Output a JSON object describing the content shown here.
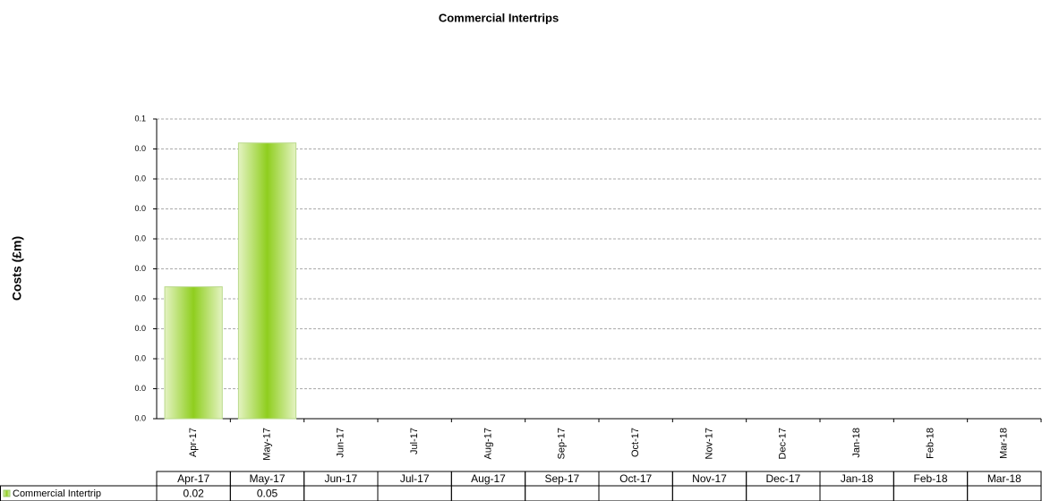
{
  "chart_data": {
    "type": "bar",
    "title": "Commercial Intertrips",
    "y_label": "Costs (£m)",
    "categories": [
      "Apr-17",
      "May-17",
      "Jun-17",
      "Jul-17",
      "Aug-17",
      "Sep-17",
      "Oct-17",
      "Nov-17",
      "Dec-17",
      "Jan-18",
      "Feb-18",
      "Mar-18"
    ],
    "series": [
      {
        "name": "Commercial Intertrip",
        "color": "#8fce1e",
        "values": [
          0.022,
          0.046,
          null,
          null,
          null,
          null,
          null,
          null,
          null,
          null,
          null,
          null
        ],
        "value_labels": [
          "0.02",
          "0.05",
          null,
          null,
          null,
          null,
          null,
          null,
          null,
          null,
          null,
          null
        ]
      }
    ],
    "ylim": [
      0,
      0.05
    ],
    "yticks": [
      {
        "value": 0,
        "label": "0.0"
      },
      {
        "value": 0.005,
        "label": "0.0"
      },
      {
        "value": 0.01,
        "label": "0.0"
      },
      {
        "value": 0.015,
        "label": "0.0"
      },
      {
        "value": 0.02,
        "label": "0.0"
      },
      {
        "value": 0.025,
        "label": "0.0"
      },
      {
        "value": 0.03,
        "label": "0.0"
      },
      {
        "value": 0.035,
        "label": "0.0"
      },
      {
        "value": 0.04,
        "label": "0.0"
      },
      {
        "value": 0.045,
        "label": "0.0"
      },
      {
        "value": 0.05,
        "label": "0.1"
      }
    ],
    "grid": true
  }
}
